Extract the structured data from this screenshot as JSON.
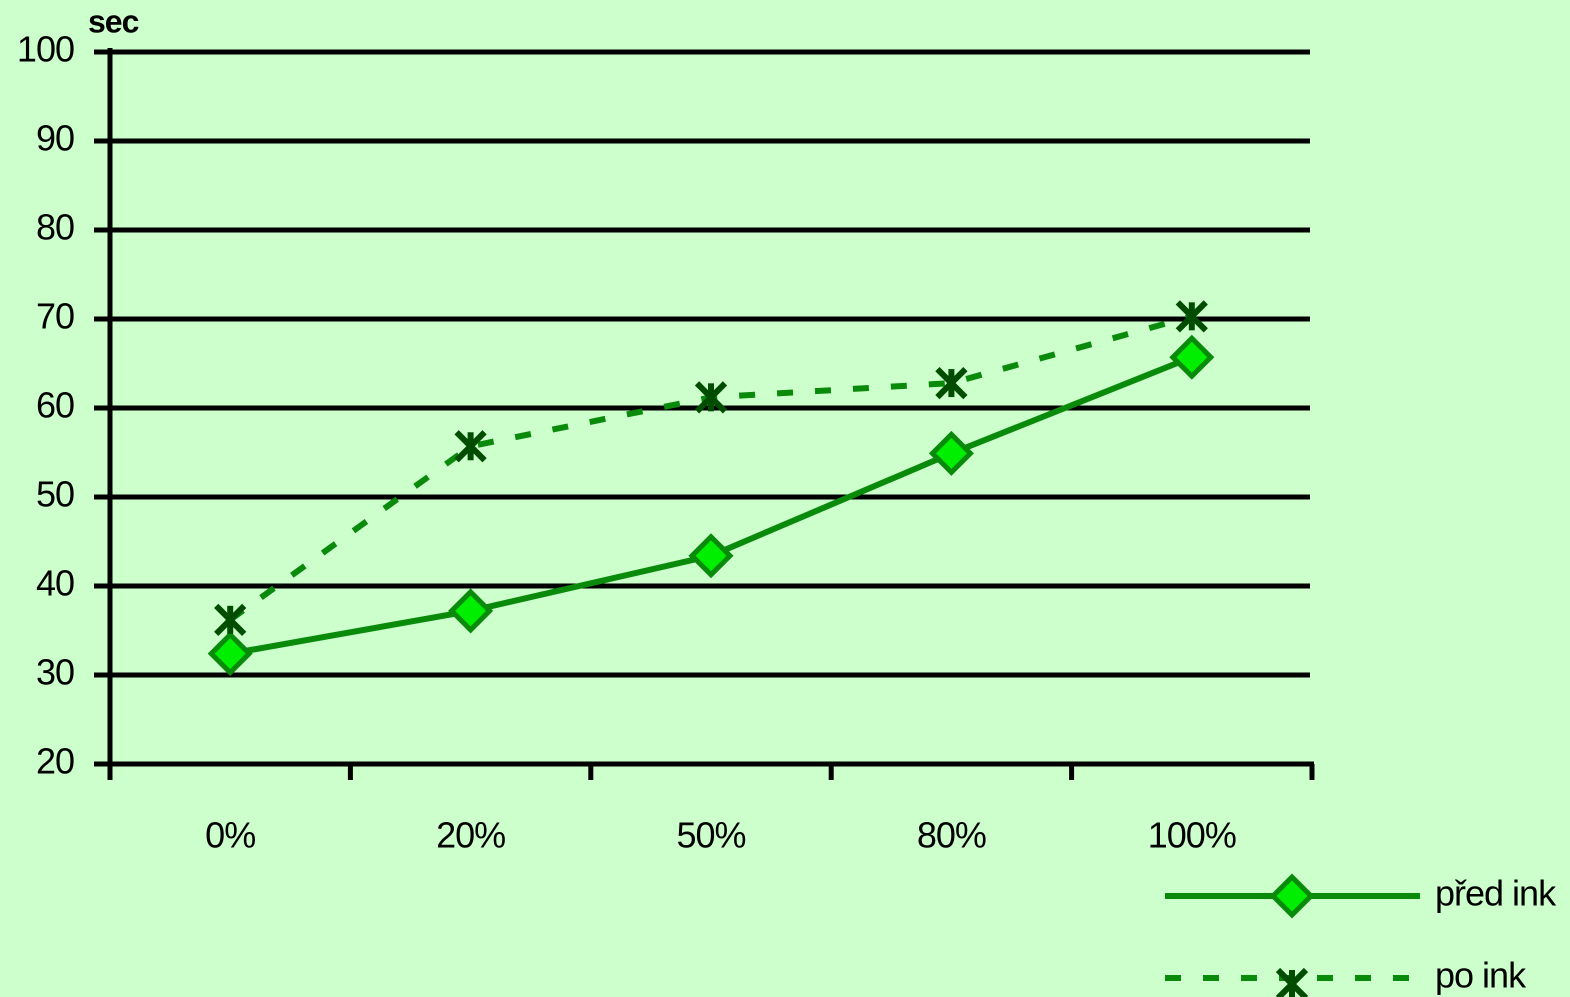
{
  "chart_data": {
    "type": "line",
    "y_label": "sec",
    "categories": [
      "0%",
      "20%",
      "50%",
      "80%",
      "100%"
    ],
    "series": [
      {
        "name": "před ink",
        "color": "#0a8a0a",
        "marker_color": "#00ee00",
        "marker": "diamond",
        "dashed": false,
        "values": [
          32.4,
          37.2,
          43.4,
          54.9,
          65.7
        ]
      },
      {
        "name": "po ink",
        "color": "#0a8a0a",
        "marker_color": "#004d00",
        "marker": "x",
        "dashed": true,
        "values": [
          36.2,
          55.7,
          61.2,
          62.8,
          70.3
        ]
      }
    ],
    "ylim": [
      20,
      100
    ],
    "yticks": [
      20,
      30,
      40,
      50,
      60,
      70,
      80,
      90,
      100
    ],
    "grid": true,
    "legend": "bottom-right"
  }
}
